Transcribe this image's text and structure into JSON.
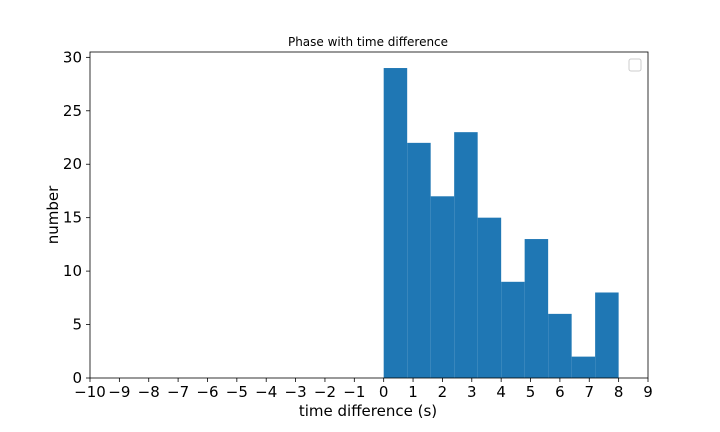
{
  "chart_data": {
    "type": "bar",
    "title": "Phase with time difference",
    "xlabel": "time difference (s)",
    "ylabel": "number",
    "xlim": [
      -10,
      9
    ],
    "ylim": [
      0,
      30.5
    ],
    "xticks": [
      "−10",
      "−9",
      "−8",
      "−7",
      "−6",
      "−5",
      "−4",
      "−3",
      "−2",
      "−1",
      "0",
      "1",
      "2",
      "3",
      "4",
      "5",
      "6",
      "7",
      "8",
      "9"
    ],
    "yticks": [
      "0",
      "5",
      "10",
      "15",
      "20",
      "25",
      "30"
    ],
    "bin_edges": [
      0,
      0.8,
      1.6,
      2.4,
      3.2,
      4.0,
      4.8,
      5.6,
      6.4,
      7.2,
      8.0
    ],
    "values": [
      29,
      22,
      17,
      23,
      15,
      9,
      13,
      6,
      2,
      8
    ],
    "color": "#1f77b4",
    "grid": false,
    "legend": "top-right (empty)"
  }
}
